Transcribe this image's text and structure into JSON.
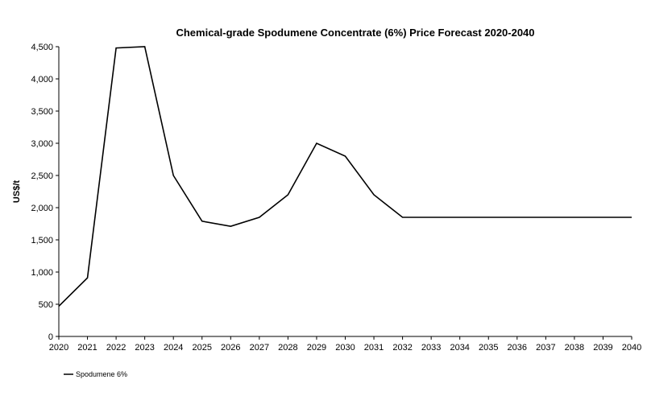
{
  "chart_data": {
    "type": "line",
    "title": "Chemical-grade Spodumene Concentrate (6%) Price Forecast 2020-2040",
    "xlabel": "",
    "ylabel": "US$/t",
    "x": [
      "2020",
      "2021",
      "2022",
      "2023",
      "2024",
      "2025",
      "2026",
      "2027",
      "2028",
      "2029",
      "2030",
      "2031",
      "2032",
      "2033",
      "2034",
      "2035",
      "2036",
      "2037",
      "2038",
      "2039",
      "2040"
    ],
    "y_ticks": [
      "0",
      "500",
      "1,000",
      "1,500",
      "2,000",
      "2,500",
      "3,000",
      "3,500",
      "4,000",
      "4,500"
    ],
    "ylim": [
      0,
      4500
    ],
    "grid": false,
    "legend_position": "bottom-left",
    "series": [
      {
        "name": "Spodumene 6%",
        "color": "#000000",
        "values": [
          470,
          910,
          4480,
          4500,
          2500,
          1790,
          1710,
          1850,
          2200,
          3000,
          2800,
          2200,
          1850,
          1850,
          1850,
          1850,
          1850,
          1850,
          1850,
          1850,
          1850
        ]
      }
    ]
  }
}
